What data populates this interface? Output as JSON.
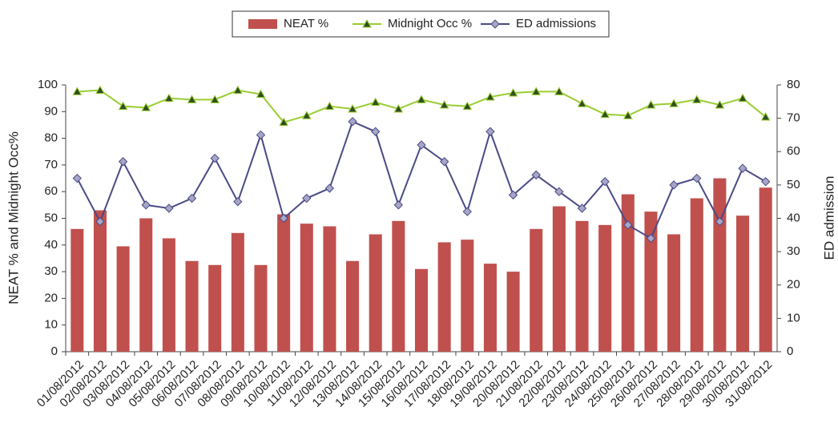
{
  "chart_data": {
    "type": "combo",
    "categories": [
      "01/08/2012",
      "02/08/2012",
      "03/08/2012",
      "04/08/2012",
      "05/08/2012",
      "06/08/2012",
      "07/08/2012",
      "08/08/2012",
      "09/08/2012",
      "10/08/2012",
      "11/08/2012",
      "12/08/2012",
      "13/08/2012",
      "14/08/2012",
      "15/08/2012",
      "16/08/2012",
      "17/08/2012",
      "18/08/2012",
      "19/08/2012",
      "20/08/2012",
      "21/08/2012",
      "22/08/2012",
      "23/08/2012",
      "24/08/2012",
      "25/08/2012",
      "26/08/2012",
      "27/08/2012",
      "28/08/2012",
      "29/08/2012",
      "30/08/2012",
      "31/08/2012"
    ],
    "series": [
      {
        "name": "NEAT %",
        "type": "bar",
        "color": "#c0504d",
        "values": [
          46,
          53,
          39.5,
          50,
          42.5,
          34,
          32.5,
          44.5,
          32.5,
          51.5,
          48,
          47,
          34,
          44,
          49,
          31,
          41,
          42,
          33,
          30,
          46,
          54.5,
          49,
          47.5,
          59,
          52.5,
          44,
          57.5,
          65,
          51,
          61.5
        ]
      },
      {
        "name": "Midnight Occ %",
        "type": "line",
        "marker": "triangle",
        "color": "#9acd32",
        "marker_color": "#2f4f1f",
        "values": [
          97.5,
          98,
          92,
          91.5,
          95,
          94.5,
          94.5,
          98,
          96.5,
          86,
          88.5,
          92,
          91,
          93.5,
          91,
          94.5,
          92.5,
          92,
          95.5,
          97,
          97.5,
          97.5,
          93,
          89,
          88.5,
          92.5,
          93,
          94.5,
          92.5,
          95,
          88
        ]
      },
      {
        "name": "ED admissions",
        "type": "line",
        "marker": "diamond",
        "axis": "y2",
        "color": "#4a4a86",
        "marker_color": "#a6a6c8",
        "values": [
          52,
          39,
          57,
          44,
          43,
          46,
          58,
          45,
          65,
          40,
          46,
          49,
          69,
          66,
          44,
          62,
          57,
          42,
          66,
          47,
          53,
          48,
          43,
          51,
          38,
          34,
          50,
          52,
          39,
          55,
          51
        ]
      }
    ],
    "ylabel": "NEAT % and Midnight Occ%",
    "y2label": "ED admission",
    "ylim": [
      0,
      100
    ],
    "yticks": [
      0,
      10,
      20,
      30,
      40,
      50,
      60,
      70,
      80,
      90,
      100
    ],
    "y2lim": [
      0,
      80
    ],
    "y2ticks": [
      0,
      10,
      20,
      30,
      40,
      50,
      60,
      70,
      80
    ],
    "legend": "top"
  }
}
